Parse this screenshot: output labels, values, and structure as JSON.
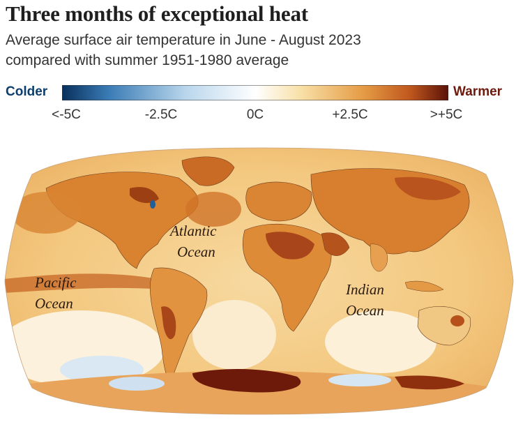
{
  "title": "Three months of exceptional heat",
  "subtitle_line1": "Average surface air temperature in June - August 2023",
  "subtitle_line2": "compared with summer 1951-1980 average",
  "scale": {
    "cold_label": "Colder",
    "warm_label": "Warmer",
    "ticks": [
      "<-5C",
      "-2.5C",
      "0C",
      "+2.5C",
      ">+5C"
    ],
    "colors": {
      "cold_extreme": "#08305c",
      "cold": "#3a7bb5",
      "cool": "#b9d6ec",
      "neutral": "#ffffff",
      "warm_light": "#f8dfa6",
      "warm": "#e59b45",
      "hot": "#c0581e",
      "hot_extreme": "#5a1208"
    }
  },
  "map": {
    "labels": {
      "pacific_1": "Pacific",
      "pacific_2": "Ocean",
      "atlantic_1": "Atlantic",
      "atlantic_2": "Ocean",
      "indian_1": "Indian",
      "indian_2": "Ocean"
    }
  }
}
